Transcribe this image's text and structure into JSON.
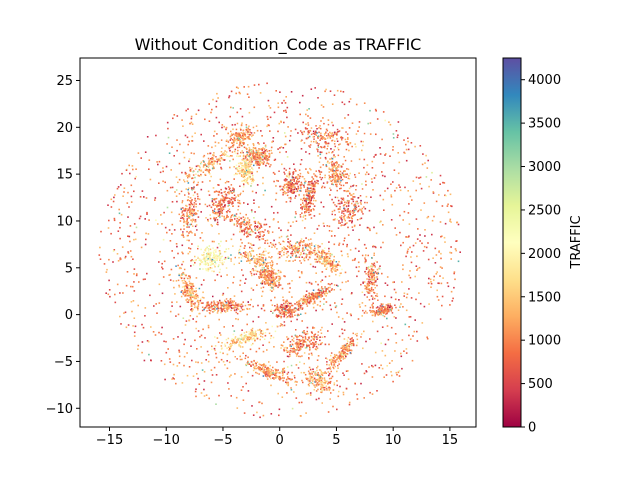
{
  "chart_data": {
    "type": "scatter",
    "title": "Without Condition_Code as TRAFFIC",
    "xlabel": "",
    "ylabel": "",
    "xlim": [
      -17.6,
      17.3
    ],
    "ylim": [
      -12.0,
      27.4
    ],
    "xticks": [
      -15,
      -10,
      -5,
      0,
      5,
      10,
      15
    ],
    "yticks": [
      -10,
      -5,
      0,
      5,
      10,
      15,
      20,
      25
    ],
    "xtick_labels": [
      "−15",
      "−10",
      "−5",
      "0",
      "5",
      "10",
      "15"
    ],
    "ytick_labels": [
      "−10",
      "−5",
      "0",
      "5",
      "10",
      "15",
      "20",
      "25"
    ],
    "grid": false,
    "colorbar": {
      "label": "TRAFFIC",
      "colormap": "Spectral",
      "range": [
        0,
        4250
      ],
      "ticks": [
        0,
        500,
        1000,
        1500,
        2000,
        2500,
        3000,
        3500,
        4000
      ],
      "tick_labels": [
        "0",
        "500",
        "1000",
        "1500",
        "2000",
        "2500",
        "3000",
        "3500",
        "4000"
      ]
    },
    "colormap_stops": [
      "#9e0142",
      "#d53e4f",
      "#f46d43",
      "#fdae61",
      "#fee08b",
      "#ffffbf",
      "#e6f598",
      "#abdda4",
      "#66c2a5",
      "#3288bd",
      "#5e4fa2"
    ],
    "cloud": {
      "center": [
        0,
        7
      ],
      "extent_x": [
        -16,
        16
      ],
      "extent_y": [
        -10,
        26
      ],
      "typical_traffic": [
        300,
        1500
      ]
    },
    "dense_clusters": [
      {
        "x": -3.5,
        "y": 19,
        "traffic": 1100
      },
      {
        "x": 4,
        "y": 19,
        "traffic": 900
      },
      {
        "x": -2,
        "y": 17,
        "traffic": 1000
      },
      {
        "x": -6.5,
        "y": 16,
        "traffic": 1200
      },
      {
        "x": -3,
        "y": 15.5,
        "traffic": 1700
      },
      {
        "x": 5,
        "y": 15,
        "traffic": 1100
      },
      {
        "x": 1,
        "y": 14,
        "traffic": 900
      },
      {
        "x": -5,
        "y": 12,
        "traffic": 900
      },
      {
        "x": 2.5,
        "y": 12.5,
        "traffic": 900
      },
      {
        "x": -8,
        "y": 11,
        "traffic": 1000
      },
      {
        "x": 6,
        "y": 11,
        "traffic": 800
      },
      {
        "x": -3,
        "y": 9.5,
        "traffic": 900
      },
      {
        "x": 1.5,
        "y": 7,
        "traffic": 1100
      },
      {
        "x": -6,
        "y": 6,
        "traffic": 2100
      },
      {
        "x": -2,
        "y": 6,
        "traffic": 1400
      },
      {
        "x": 4,
        "y": 6,
        "traffic": 1300
      },
      {
        "x": -1,
        "y": 4,
        "traffic": 1100
      },
      {
        "x": 8,
        "y": 4,
        "traffic": 1000
      },
      {
        "x": -8,
        "y": 2.5,
        "traffic": 1200
      },
      {
        "x": 3,
        "y": 2,
        "traffic": 1000
      },
      {
        "x": -5,
        "y": 1,
        "traffic": 1000
      },
      {
        "x": 0.5,
        "y": 0.5,
        "traffic": 900
      },
      {
        "x": 9,
        "y": 0.5,
        "traffic": 900
      },
      {
        "x": -3,
        "y": -2.5,
        "traffic": 1600
      },
      {
        "x": 2,
        "y": -3,
        "traffic": 1000
      },
      {
        "x": 5.5,
        "y": -4,
        "traffic": 1100
      },
      {
        "x": -1,
        "y": -6,
        "traffic": 1100
      },
      {
        "x": 3.5,
        "y": -7,
        "traffic": 1200
      }
    ]
  }
}
